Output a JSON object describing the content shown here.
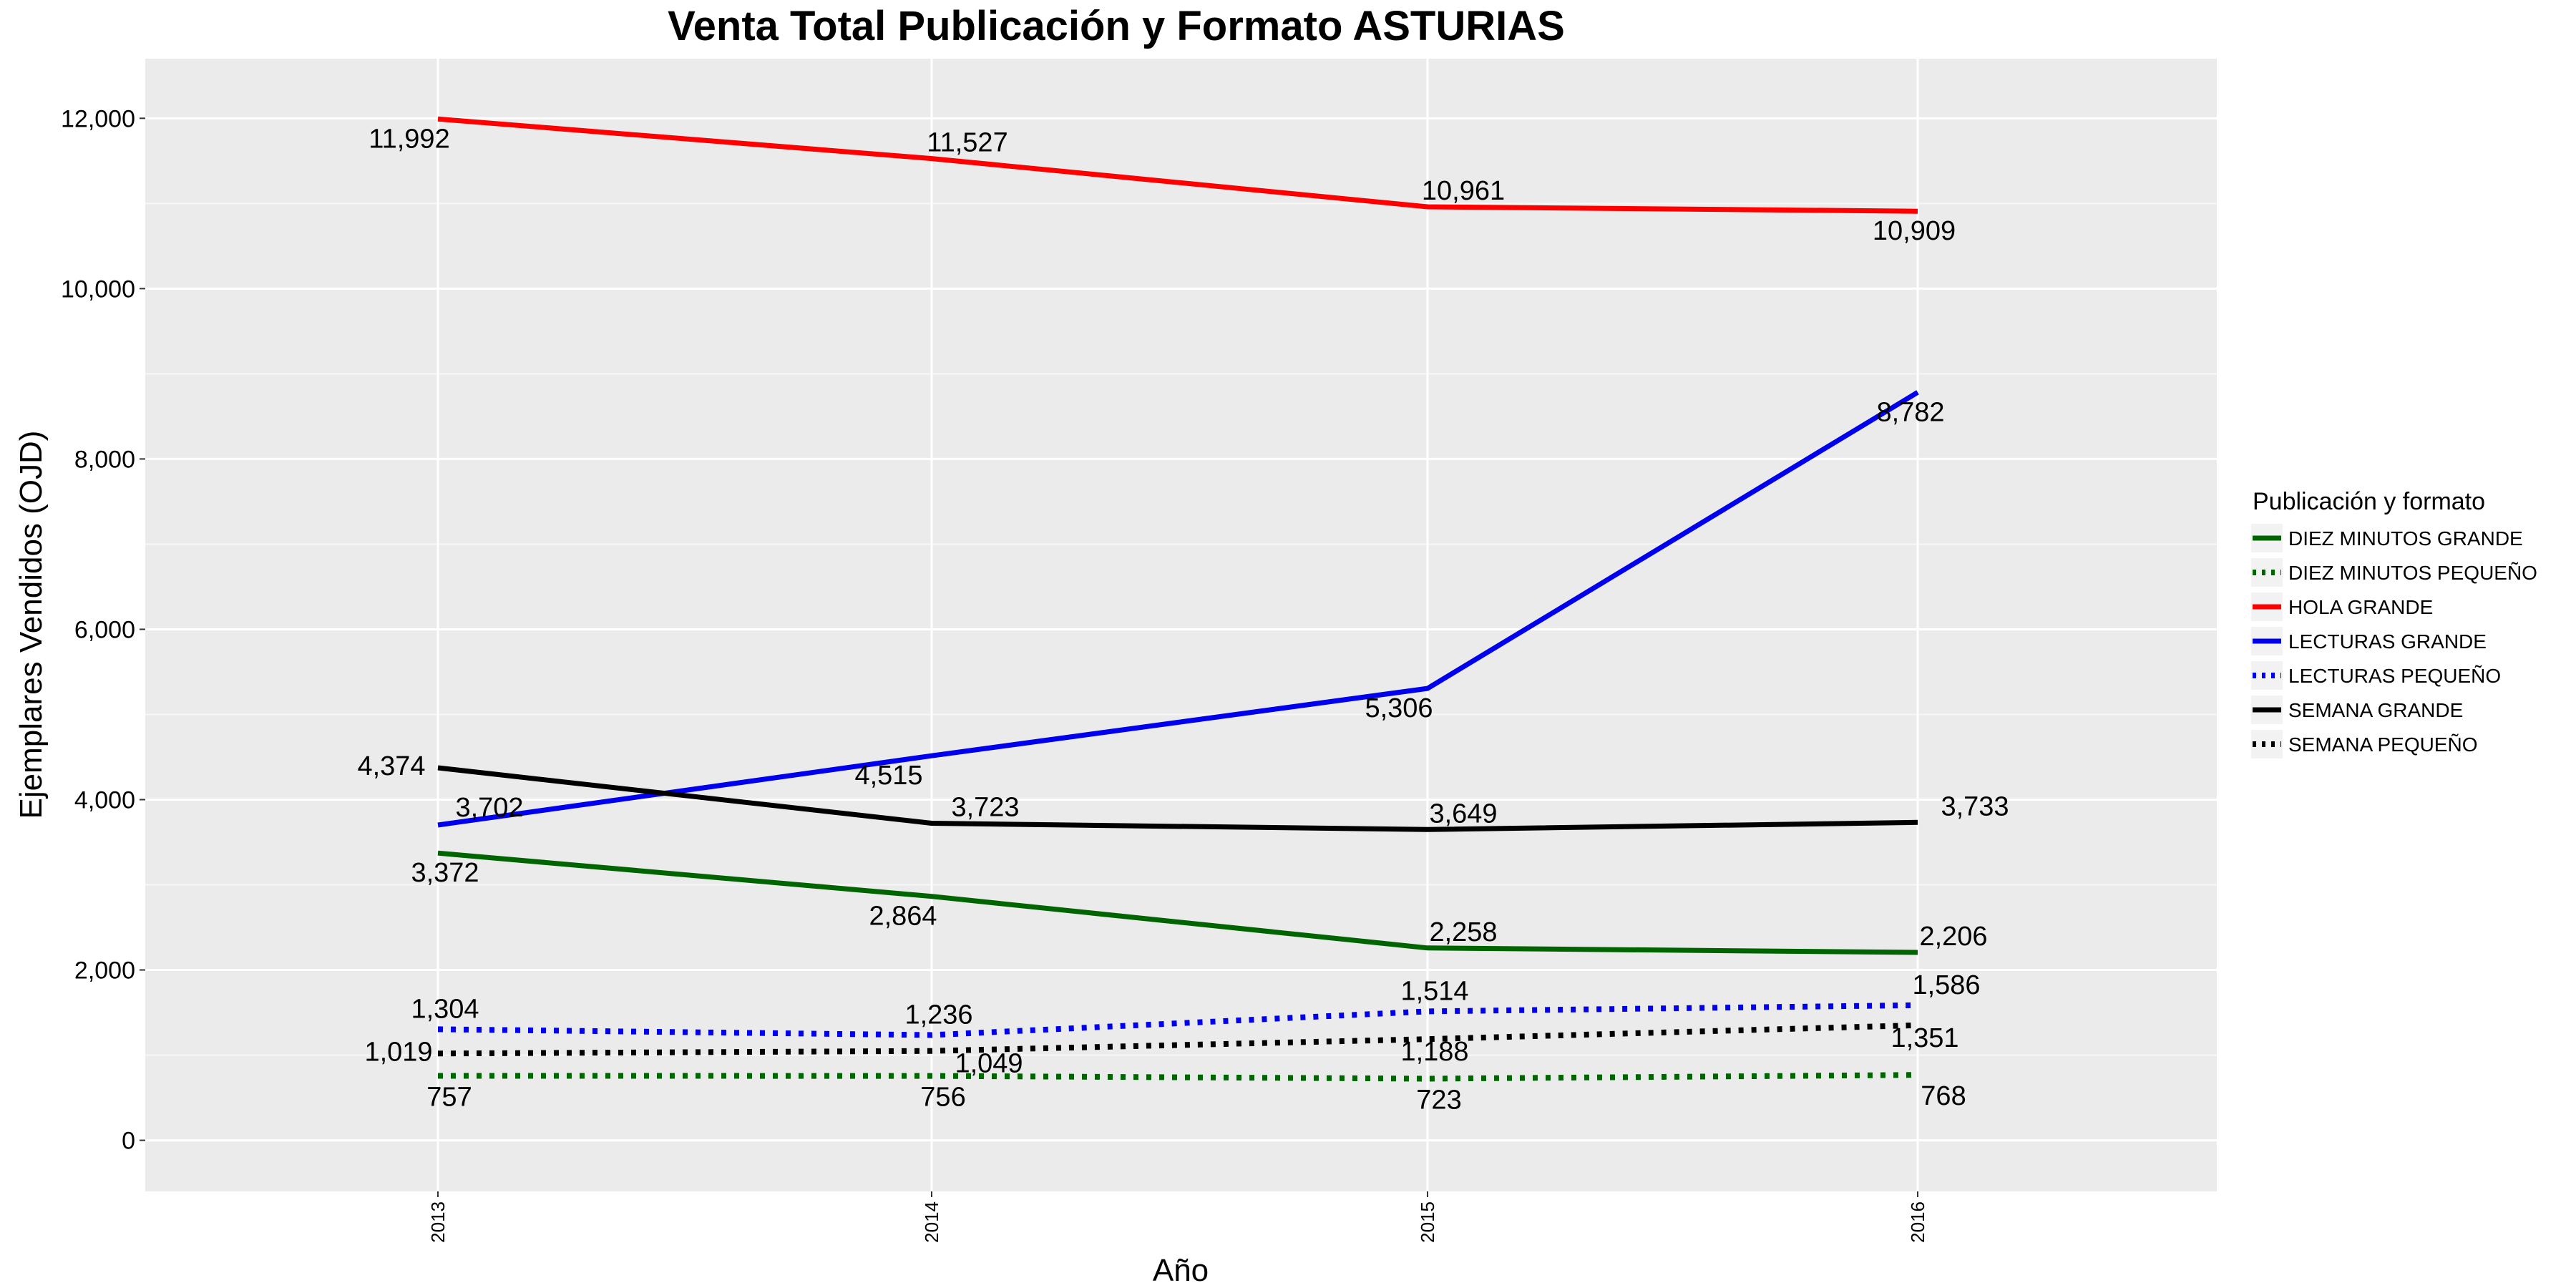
{
  "chart_data": {
    "type": "line",
    "title": "Venta Total Publicación y Formato  ASTURIAS",
    "xlabel": "Año",
    "ylabel": "Ejemplares Vendidos (OJD)",
    "x": [
      "2013",
      "2014",
      "2015",
      "2016"
    ],
    "ylim": [
      -600,
      12700
    ],
    "yticks": [
      0,
      2000,
      4000,
      6000,
      8000,
      10000,
      12000
    ],
    "ytick_labels": [
      "0",
      "2,000",
      "4,000",
      "6,000",
      "8,000",
      "10,000",
      "12,000"
    ],
    "grid": true,
    "legend": {
      "title": "Publicación y formato",
      "placement": "right"
    },
    "series": [
      {
        "name": "DIEZ MINUTOS GRANDE",
        "color": "#006400",
        "dash": "solid",
        "values": [
          3372,
          2864,
          2258,
          2206
        ],
        "labels": [
          "3,372",
          "2,864",
          "2,258",
          "2,206"
        ]
      },
      {
        "name": "DIEZ MINUTOS PEQUEÑO",
        "color": "#006400",
        "dash": "dotted",
        "values": [
          757,
          756,
          723,
          768
        ],
        "labels": [
          "757",
          "756",
          "723",
          "768"
        ]
      },
      {
        "name": "HOLA GRANDE",
        "color": "#ff0000",
        "dash": "solid",
        "values": [
          11992,
          11527,
          10961,
          10909
        ],
        "labels": [
          "11,992",
          "11,527",
          "10,961",
          "10,909"
        ]
      },
      {
        "name": "LECTURAS GRANDE",
        "color": "#0000ee",
        "dash": "solid",
        "values": [
          3702,
          4515,
          5306,
          8782
        ],
        "labels": [
          "3,702",
          "4,515",
          "5,306",
          "8,782"
        ]
      },
      {
        "name": "LECTURAS PEQUEÑO",
        "color": "#0000ee",
        "dash": "dotted",
        "values": [
          1304,
          1236,
          1514,
          1586
        ],
        "labels": [
          "1,304",
          "1,236",
          "1,514",
          "1,586"
        ]
      },
      {
        "name": "SEMANA GRANDE",
        "color": "#000000",
        "dash": "solid",
        "values": [
          4374,
          3723,
          3649,
          3733
        ],
        "labels": [
          "4,374",
          "3,723",
          "3,649",
          "3,733"
        ]
      },
      {
        "name": "SEMANA PEQUEÑO",
        "color": "#000000",
        "dash": "dotted",
        "values": [
          1019,
          1049,
          1188,
          1351
        ],
        "labels": [
          "1,019",
          "1,049",
          "1,188",
          "1,351"
        ]
      }
    ]
  }
}
